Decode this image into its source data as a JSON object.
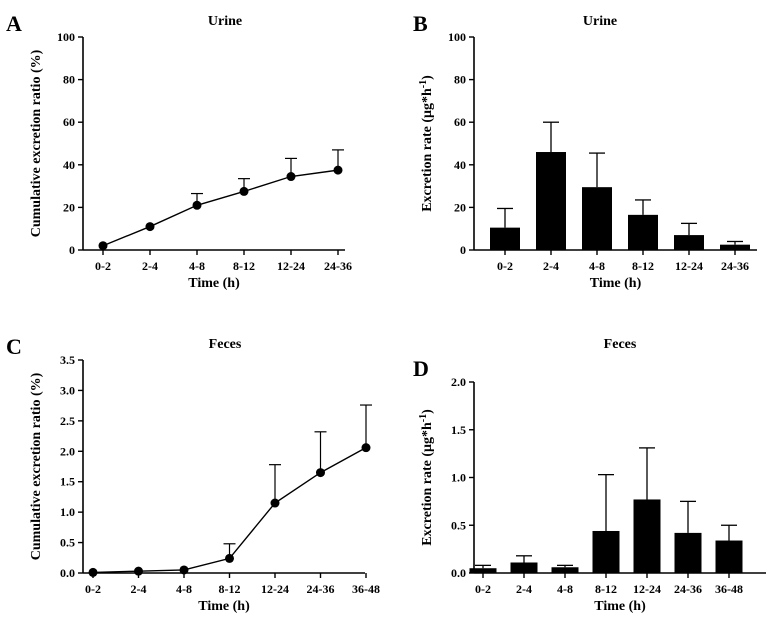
{
  "chart_data": [
    {
      "panel": "A",
      "type": "line",
      "title": "Urine",
      "xlabel": "Time (h)",
      "ylabel": "Cumulative excretion ratio (%)",
      "categories": [
        "0-2",
        "2-4",
        "4-8",
        "8-12",
        "12-24",
        "24-36"
      ],
      "values": [
        2,
        11,
        21,
        27.5,
        34.5,
        37.5
      ],
      "errors": [
        0,
        0,
        5.5,
        6,
        8.5,
        9.5
      ],
      "ylim": [
        0,
        100
      ],
      "yticks": [
        "0",
        "20",
        "40",
        "60",
        "80",
        "100"
      ]
    },
    {
      "panel": "B",
      "type": "bar",
      "title": "Urine",
      "xlabel": "Time (h)",
      "ylabel": "Excretion rate (μg*h",
      "ylabel_sup": "-1",
      "ylabel_end": ")",
      "categories": [
        "0-2",
        "2-4",
        "4-8",
        "8-12",
        "12-24",
        "24-36"
      ],
      "values": [
        10.5,
        46,
        29.5,
        16.5,
        7,
        2.5
      ],
      "errors": [
        9,
        14,
        16,
        7,
        5.5,
        1.5
      ],
      "ylim": [
        0,
        100
      ],
      "yticks": [
        "0",
        "20",
        "40",
        "60",
        "80",
        "100"
      ]
    },
    {
      "panel": "C",
      "type": "line",
      "title": "Feces",
      "xlabel": "Time (h)",
      "ylabel": "Cumulative excretion ratio (%)",
      "categories": [
        "0-2",
        "2-4",
        "4-8",
        "8-12",
        "12-24",
        "24-36",
        "36-48"
      ],
      "values": [
        0.01,
        0.03,
        0.05,
        0.24,
        1.15,
        1.65,
        2.06
      ],
      "errors": [
        0,
        0,
        0,
        0.24,
        0.63,
        0.67,
        0.7
      ],
      "ylim": [
        0,
        3.5
      ],
      "yticks": [
        "0.0",
        "0.5",
        "1.0",
        "1.5",
        "2.0",
        "2.5",
        "3.0",
        "3.5"
      ]
    },
    {
      "panel": "D",
      "type": "bar",
      "title": "Feces",
      "xlabel": "Time (h)",
      "ylabel": "Excretion rate (μg*h",
      "ylabel_sup": "-1",
      "ylabel_end": ")",
      "categories": [
        "0-2",
        "2-4",
        "4-8",
        "8-12",
        "12-24",
        "24-36",
        "36-48"
      ],
      "values": [
        0.05,
        0.11,
        0.06,
        0.44,
        0.77,
        0.42,
        0.34
      ],
      "errors": [
        0.03,
        0.07,
        0.02,
        0.59,
        0.54,
        0.33,
        0.16
      ],
      "ylim": [
        0,
        2.0
      ],
      "yticks": [
        "0.0",
        "0.5",
        "1.0",
        "1.5",
        "2.0"
      ]
    }
  ]
}
